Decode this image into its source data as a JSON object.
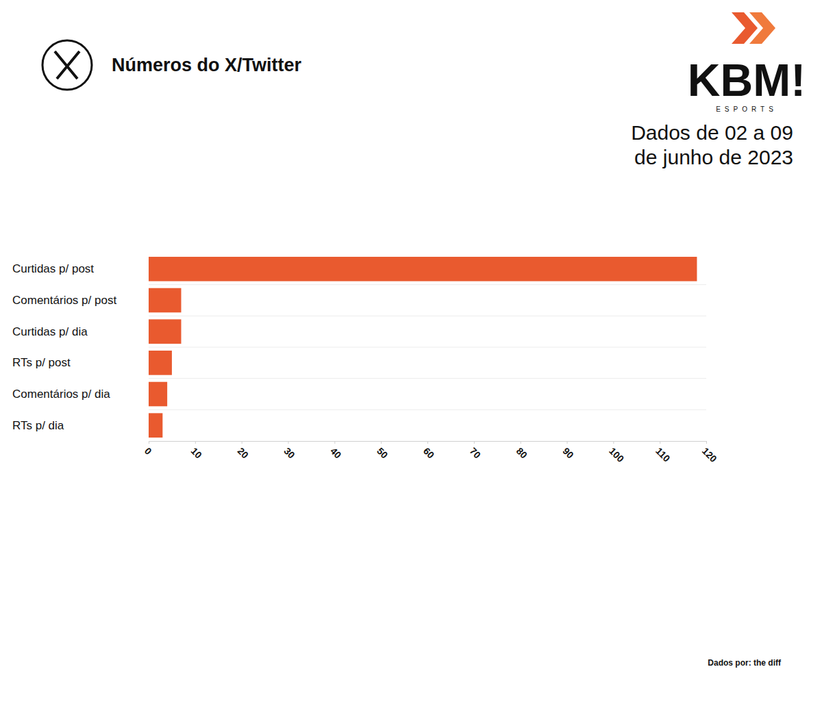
{
  "chart_data": {
    "type": "bar",
    "orientation": "horizontal",
    "title": "Números do X/Twitter",
    "subtitle": "Dados de 02 a 09 de junho de 2023",
    "annotations": [
      "KBM!",
      "ESPORTS",
      "Dados por: the diff"
    ],
    "categories": [
      "Curtidas p/ post",
      "Comentários p/ post",
      "Curtidas p/ dia",
      "RTs p/ post",
      "Comentários p/ dia",
      "RTs p/ dia"
    ],
    "values": [
      118,
      7,
      7,
      5,
      4,
      3
    ],
    "color": "#e95a2f",
    "xlim": [
      0,
      120
    ],
    "xticks": [
      0,
      10,
      20,
      30,
      40,
      50,
      60,
      70,
      80,
      90,
      100,
      110,
      120
    ]
  }
}
